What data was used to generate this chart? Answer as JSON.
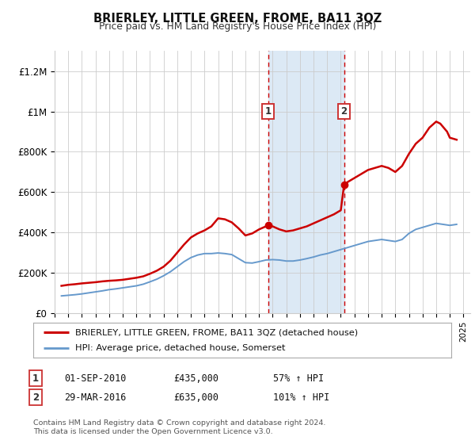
{
  "title": "BRIERLEY, LITTLE GREEN, FROME, BA11 3QZ",
  "subtitle": "Price paid vs. HM Land Registry's House Price Index (HPI)",
  "legend_line1": "BRIERLEY, LITTLE GREEN, FROME, BA11 3QZ (detached house)",
  "legend_line2": "HPI: Average price, detached house, Somerset",
  "sale1_label": "1",
  "sale1_date": "01-SEP-2010",
  "sale1_price": "£435,000",
  "sale1_hpi": "57% ↑ HPI",
  "sale1_year": 2010.67,
  "sale1_value": 435000,
  "sale2_label": "2",
  "sale2_date": "29-MAR-2016",
  "sale2_price": "£635,000",
  "sale2_hpi": "101% ↑ HPI",
  "sale2_year": 2016.24,
  "sale2_value": 635000,
  "footer1": "Contains HM Land Registry data © Crown copyright and database right 2024.",
  "footer2": "This data is licensed under the Open Government Licence v3.0.",
  "red_line_color": "#cc0000",
  "blue_line_color": "#6699cc",
  "shade_color": "#dce9f5",
  "background_color": "#ffffff",
  "grid_color": "#cccccc",
  "ylim": [
    0,
    1300000
  ],
  "xlim_start": 1995.0,
  "xlim_end": 2025.5,
  "red_x": [
    1995.5,
    1996.0,
    1996.5,
    1997.0,
    1997.5,
    1998.0,
    1998.5,
    1999.0,
    1999.5,
    2000.0,
    2000.5,
    2001.0,
    2001.5,
    2002.0,
    2002.5,
    2003.0,
    2003.5,
    2004.0,
    2004.5,
    2005.0,
    2005.5,
    2006.0,
    2006.5,
    2007.0,
    2007.5,
    2008.0,
    2008.5,
    2009.0,
    2009.5,
    2010.0,
    2010.67,
    2011.0,
    2011.5,
    2012.0,
    2012.5,
    2013.0,
    2013.5,
    2014.0,
    2014.5,
    2015.0,
    2015.5,
    2016.0,
    2016.24,
    2016.5,
    2017.0,
    2017.5,
    2018.0,
    2018.5,
    2019.0,
    2019.5,
    2020.0,
    2020.5,
    2021.0,
    2021.5,
    2022.0,
    2022.5,
    2023.0,
    2023.3,
    2023.8,
    2024.0,
    2024.5
  ],
  "red_y": [
    135000,
    140000,
    143000,
    147000,
    150000,
    153000,
    157000,
    160000,
    162000,
    165000,
    170000,
    175000,
    182000,
    195000,
    210000,
    230000,
    260000,
    300000,
    340000,
    375000,
    395000,
    410000,
    430000,
    470000,
    465000,
    450000,
    420000,
    385000,
    395000,
    415000,
    435000,
    430000,
    415000,
    405000,
    410000,
    420000,
    430000,
    445000,
    460000,
    475000,
    490000,
    510000,
    635000,
    650000,
    670000,
    690000,
    710000,
    720000,
    730000,
    720000,
    700000,
    730000,
    790000,
    840000,
    870000,
    920000,
    950000,
    940000,
    900000,
    870000,
    860000
  ],
  "blue_x": [
    1995.5,
    1996.0,
    1996.5,
    1997.0,
    1997.5,
    1998.0,
    1998.5,
    1999.0,
    1999.5,
    2000.0,
    2000.5,
    2001.0,
    2001.5,
    2002.0,
    2002.5,
    2003.0,
    2003.5,
    2004.0,
    2004.5,
    2005.0,
    2005.5,
    2006.0,
    2006.5,
    2007.0,
    2007.5,
    2008.0,
    2008.5,
    2009.0,
    2009.5,
    2010.0,
    2010.5,
    2011.0,
    2011.5,
    2012.0,
    2012.5,
    2013.0,
    2013.5,
    2014.0,
    2014.5,
    2015.0,
    2015.5,
    2016.0,
    2016.5,
    2017.0,
    2017.5,
    2018.0,
    2018.5,
    2019.0,
    2019.5,
    2020.0,
    2020.5,
    2021.0,
    2021.5,
    2022.0,
    2022.5,
    2023.0,
    2023.5,
    2024.0,
    2024.5
  ],
  "blue_y": [
    85000,
    88000,
    91000,
    95000,
    100000,
    105000,
    110000,
    116000,
    120000,
    125000,
    130000,
    135000,
    143000,
    155000,
    168000,
    185000,
    205000,
    230000,
    255000,
    275000,
    288000,
    295000,
    295000,
    298000,
    295000,
    290000,
    270000,
    250000,
    248000,
    255000,
    263000,
    265000,
    263000,
    258000,
    258000,
    263000,
    270000,
    278000,
    288000,
    295000,
    305000,
    315000,
    325000,
    335000,
    345000,
    355000,
    360000,
    365000,
    360000,
    355000,
    365000,
    395000,
    415000,
    425000,
    435000,
    445000,
    440000,
    435000,
    440000
  ]
}
